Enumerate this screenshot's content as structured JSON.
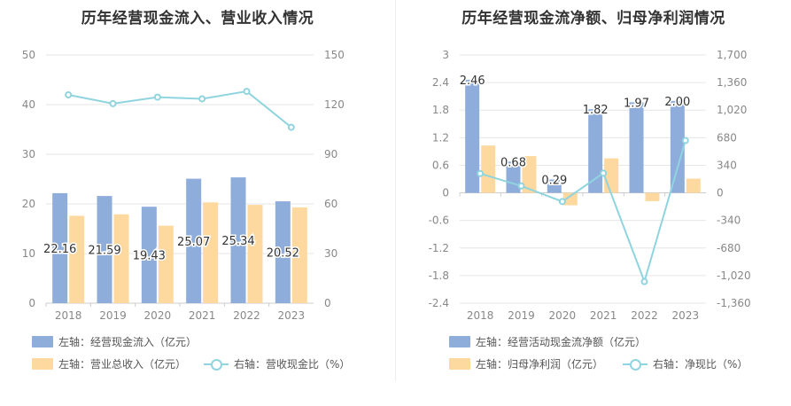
{
  "colors": {
    "bar_primary": "#8eaddb",
    "bar_secondary": "#fdd9a0",
    "line": "#8fd4de",
    "axis_text": "#888888",
    "grid": "#e6e6e6",
    "label": "#333333"
  },
  "chart_data": [
    {
      "type": "bar",
      "title": "历年经营现金流入、营业收入情况",
      "categories": [
        "2018",
        "2019",
        "2020",
        "2021",
        "2022",
        "2023"
      ],
      "left_axis": {
        "ticks": [
          "0",
          "10",
          "20",
          "30",
          "40",
          "50"
        ],
        "ylim": [
          0,
          50
        ]
      },
      "right_axis": {
        "ticks": [
          "0",
          "30",
          "60",
          "90",
          "120",
          "150"
        ],
        "ylim": [
          0,
          150
        ]
      },
      "series": [
        {
          "name": "左轴：经营现金流入（亿元）",
          "kind": "bar",
          "axis": "left",
          "values": [
            22.16,
            21.59,
            19.43,
            25.07,
            25.34,
            20.52
          ],
          "labels": [
            "22.16",
            "21.59",
            "19.43",
            "25.07",
            "25.34",
            "20.52"
          ]
        },
        {
          "name": "左轴：营业总收入（亿元）",
          "kind": "bar",
          "axis": "left",
          "values": [
            17.6,
            17.9,
            15.6,
            20.3,
            19.8,
            19.3
          ]
        },
        {
          "name": "右轴：营收现金比（%）",
          "kind": "line",
          "axis": "right",
          "values": [
            125.9,
            120.6,
            124.5,
            123.5,
            128.0,
            106.3
          ]
        }
      ]
    },
    {
      "type": "bar",
      "title": "历年经营现金流净额、归母净利润情况",
      "categories": [
        "2018",
        "2019",
        "2020",
        "2021",
        "2022",
        "2023"
      ],
      "left_axis": {
        "ticks": [
          "-2.4",
          "-1.8",
          "-1.2",
          "-0.6",
          "0",
          "0.6",
          "1.2",
          "1.8",
          "2.4",
          "3"
        ],
        "ylim": [
          -2.4,
          3
        ]
      },
      "right_axis": {
        "ticks": [
          "-1,360",
          "-1,020",
          "-680",
          "-340",
          "0",
          "340",
          "680",
          "1,020",
          "1,360",
          "1,700"
        ],
        "ylim": [
          -1360,
          1700
        ]
      },
      "series": [
        {
          "name": "左轴：经营活动现金流净额（亿元）",
          "kind": "bar",
          "axis": "left",
          "values": [
            2.46,
            0.68,
            0.29,
            1.82,
            1.97,
            2.0
          ],
          "labels": [
            "2.46",
            "0.68",
            "0.29",
            "1.82",
            "1.97",
            "2.00"
          ]
        },
        {
          "name": "左轴：归母净利润（亿元）",
          "kind": "bar",
          "axis": "left",
          "values": [
            1.03,
            0.8,
            -0.27,
            0.75,
            -0.18,
            0.31
          ]
        },
        {
          "name": "右轴：净现比（%）",
          "kind": "line",
          "axis": "right",
          "values": [
            238,
            85,
            -107,
            243,
            -1094,
            645
          ]
        }
      ]
    }
  ]
}
